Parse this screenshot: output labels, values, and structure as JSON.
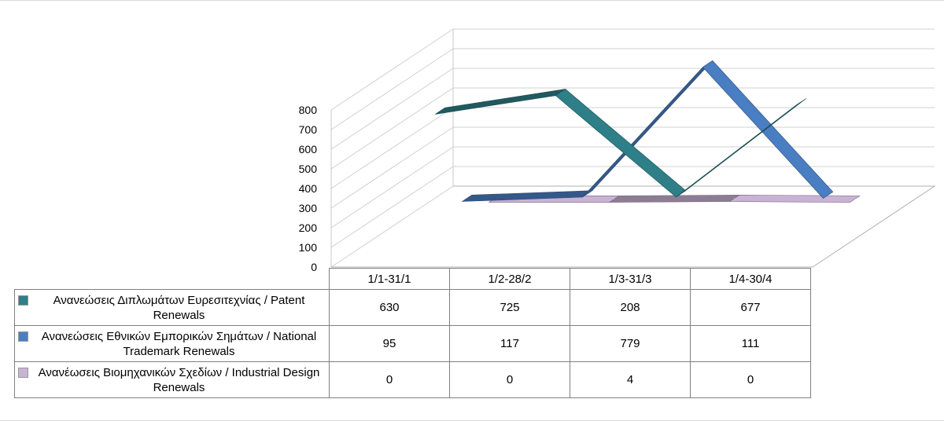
{
  "chart_data": {
    "type": "line",
    "style": "3d-ribbon",
    "categories": [
      "1/1-31/1",
      "1/2-28/2",
      "1/3-31/3",
      "1/4-30/4"
    ],
    "series": [
      {
        "name": "Ανανεώσεις Διπλωμάτων Ευρεσιτεχνίας  / Patent Renewals",
        "values": [
          630,
          725,
          208,
          677
        ],
        "color": "#2e7f87"
      },
      {
        "name": "Ανανεώσεις Εθνικών Εμπορικών Σημάτων / National Trademark Renewals",
        "values": [
          95,
          117,
          779,
          111
        ],
        "color": "#4a7ec2"
      },
      {
        "name": "Ανανέωσεις Βιομηχανικών Σχεδίων / Industrial Design Renewals",
        "values": [
          0,
          0,
          4,
          0
        ],
        "color": "#c9b3d4"
      }
    ],
    "y_ticks": [
      0,
      100,
      200,
      300,
      400,
      500,
      600,
      700,
      800
    ],
    "ylim": [
      0,
      800
    ],
    "grid": true,
    "legend": "data-table-below"
  }
}
